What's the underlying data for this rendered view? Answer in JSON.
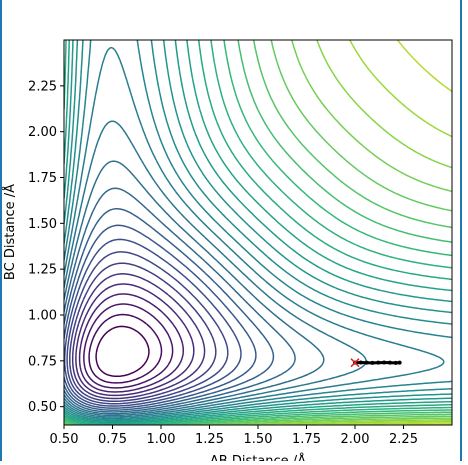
{
  "chart_data": {
    "type": "contour",
    "title": "",
    "xlabel": "AB Distance /Å",
    "ylabel": "BC Distance /Å",
    "xlim": [
      0.5,
      2.5
    ],
    "ylim": [
      0.4,
      2.5
    ],
    "x_ticks": [
      "0.50",
      "0.75",
      "1.00",
      "1.25",
      "1.50",
      "1.75",
      "2.00",
      "2.25"
    ],
    "x_tick_values": [
      0.5,
      0.75,
      1.0,
      1.25,
      1.5,
      1.75,
      2.0,
      2.25
    ],
    "y_ticks": [
      "0.50",
      "0.75",
      "1.00",
      "1.25",
      "1.50",
      "1.75",
      "2.00",
      "2.25"
    ],
    "y_tick_values": [
      0.5,
      0.75,
      1.0,
      1.25,
      1.5,
      1.75,
      2.0,
      2.25
    ],
    "colormap": "viridis",
    "grid": false,
    "trajectory": {
      "color": "#000000",
      "start_marker": "x",
      "start_marker_color": "#d62728",
      "x": [
        2.0,
        2.03,
        2.06,
        2.09,
        2.12,
        2.15,
        2.18,
        2.21,
        2.23
      ],
      "y": [
        0.74,
        0.741,
        0.74,
        0.739,
        0.74,
        0.741,
        0.74,
        0.739,
        0.74
      ]
    }
  }
}
